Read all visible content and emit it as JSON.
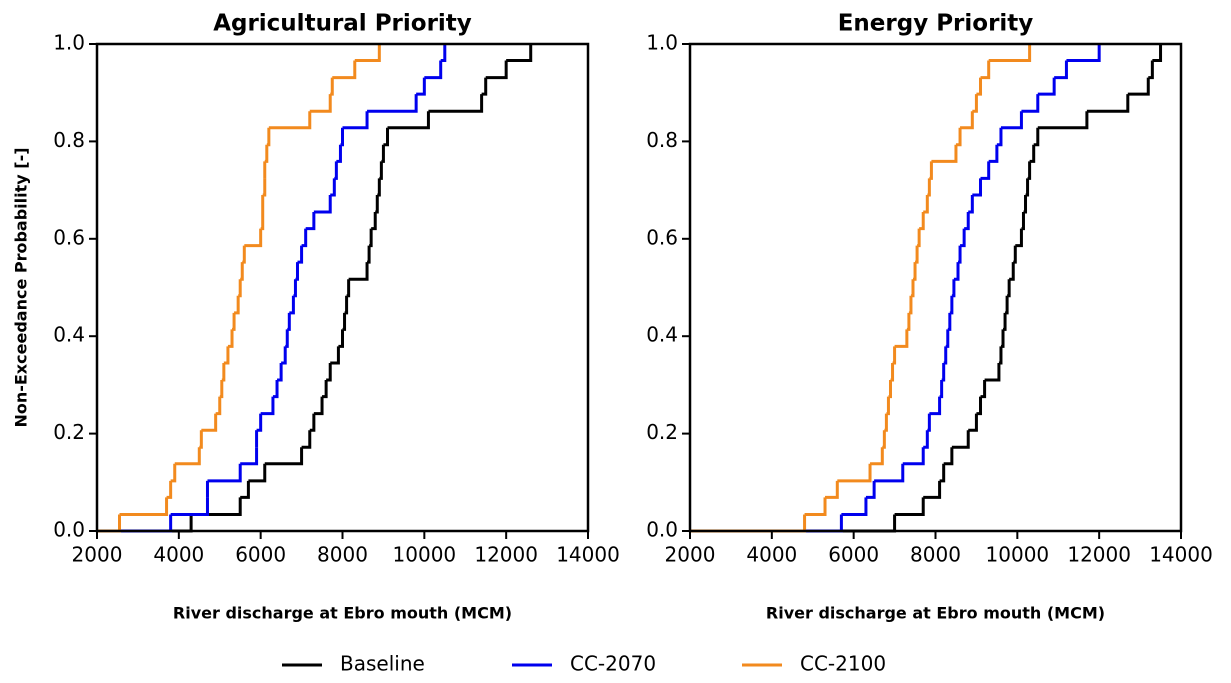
{
  "chart_data": [
    {
      "type": "step",
      "title": "Agricultural Priority",
      "xlabel": "River discharge at Ebro mouth (MCM)",
      "ylabel": "Non-Exceedance Probability [-]",
      "xlim": [
        2000,
        14000
      ],
      "ylim": [
        0,
        1
      ],
      "xticks": [
        2000,
        4000,
        6000,
        8000,
        10000,
        12000,
        14000
      ],
      "yticks": [
        {
          "value": 0,
          "label": "0.0"
        },
        {
          "value": 0.2,
          "label": "0.2"
        },
        {
          "value": 0.4,
          "label": "0.4"
        },
        {
          "value": 0.6,
          "label": "0.6"
        },
        {
          "value": 0.8,
          "label": "0.8"
        },
        {
          "value": 1,
          "label": "1.0"
        }
      ],
      "legend": "bottom",
      "series": [
        {
          "name": "Baseline",
          "color": "#000000",
          "x": [
            4300,
            5500,
            5700,
            6100,
            7000,
            7200,
            7300,
            7500,
            7600,
            7700,
            7900,
            8000,
            8050,
            8100,
            8150,
            8600,
            8650,
            8700,
            8800,
            8850,
            8900,
            8950,
            9000,
            9100,
            10100,
            11400,
            11500,
            12000,
            12600
          ],
          "values": [
            0.034,
            0.069,
            0.103,
            0.138,
            0.172,
            0.207,
            0.241,
            0.276,
            0.31,
            0.345,
            0.379,
            0.414,
            0.448,
            0.483,
            0.517,
            0.552,
            0.586,
            0.621,
            0.655,
            0.69,
            0.724,
            0.759,
            0.793,
            0.828,
            0.862,
            0.897,
            0.931,
            0.966,
            1.0
          ]
        },
        {
          "name": "CC-2070",
          "color": "#0000ee",
          "x": [
            3800,
            4700,
            4700,
            5500,
            5900,
            5900,
            6000,
            6300,
            6400,
            6500,
            6600,
            6650,
            6700,
            6800,
            6850,
            6900,
            7000,
            7100,
            7300,
            7700,
            7800,
            7850,
            7950,
            8000,
            8600,
            9800,
            10000,
            10400,
            10500
          ],
          "values": [
            0.034,
            0.069,
            0.103,
            0.138,
            0.172,
            0.207,
            0.241,
            0.276,
            0.31,
            0.345,
            0.379,
            0.414,
            0.448,
            0.483,
            0.517,
            0.552,
            0.586,
            0.621,
            0.655,
            0.69,
            0.724,
            0.759,
            0.793,
            0.828,
            0.862,
            0.897,
            0.931,
            0.966,
            1.0
          ]
        },
        {
          "name": "CC-2100",
          "color": "#f28a1e",
          "x": [
            2550,
            3700,
            3800,
            3900,
            4500,
            4550,
            4900,
            5000,
            5050,
            5100,
            5200,
            5300,
            5350,
            5450,
            5500,
            5550,
            5600,
            6000,
            6050,
            6050,
            6100,
            6100,
            6150,
            6200,
            7200,
            7700,
            7750,
            8300,
            8900
          ],
          "values": [
            0.034,
            0.069,
            0.103,
            0.138,
            0.172,
            0.207,
            0.241,
            0.276,
            0.31,
            0.345,
            0.379,
            0.414,
            0.448,
            0.483,
            0.517,
            0.552,
            0.586,
            0.621,
            0.655,
            0.69,
            0.724,
            0.759,
            0.793,
            0.828,
            0.862,
            0.897,
            0.931,
            0.966,
            1.0
          ]
        }
      ]
    },
    {
      "type": "step",
      "title": "Energy Priority",
      "xlabel": "River discharge at Ebro mouth (MCM)",
      "xlim": [
        2000,
        14000
      ],
      "ylim": [
        0,
        1
      ],
      "xticks": [
        2000,
        4000,
        6000,
        8000,
        10000,
        12000,
        14000
      ],
      "yticks": [
        {
          "value": 0,
          "label": "0.0"
        },
        {
          "value": 0.2,
          "label": "0.2"
        },
        {
          "value": 0.4,
          "label": "0.4"
        },
        {
          "value": 0.6,
          "label": "0.6"
        },
        {
          "value": 0.8,
          "label": "0.8"
        },
        {
          "value": 1,
          "label": "1.0"
        }
      ],
      "series": [
        {
          "name": "Baseline",
          "color": "#000000",
          "x": [
            7000,
            7700,
            8100,
            8200,
            8400,
            8800,
            9000,
            9100,
            9200,
            9550,
            9600,
            9650,
            9700,
            9750,
            9800,
            9900,
            9950,
            10100,
            10150,
            10200,
            10250,
            10300,
            10400,
            10500,
            11700,
            12700,
            13200,
            13300,
            13500
          ],
          "values": [
            0.034,
            0.069,
            0.103,
            0.138,
            0.172,
            0.207,
            0.241,
            0.276,
            0.31,
            0.345,
            0.379,
            0.414,
            0.448,
            0.483,
            0.517,
            0.552,
            0.586,
            0.621,
            0.655,
            0.69,
            0.724,
            0.759,
            0.793,
            0.828,
            0.862,
            0.897,
            0.931,
            0.966,
            1.0
          ]
        },
        {
          "name": "CC-2070",
          "color": "#0000ee",
          "x": [
            5700,
            6300,
            6500,
            7200,
            7700,
            7800,
            7850,
            8100,
            8150,
            8200,
            8250,
            8300,
            8350,
            8400,
            8450,
            8550,
            8600,
            8700,
            8800,
            8900,
            9100,
            9300,
            9500,
            9600,
            10100,
            10500,
            10900,
            11200,
            12000
          ],
          "values": [
            0.034,
            0.069,
            0.103,
            0.138,
            0.172,
            0.207,
            0.241,
            0.276,
            0.31,
            0.345,
            0.379,
            0.414,
            0.448,
            0.483,
            0.517,
            0.552,
            0.586,
            0.621,
            0.655,
            0.69,
            0.724,
            0.759,
            0.793,
            0.828,
            0.862,
            0.897,
            0.931,
            0.966,
            1.0
          ]
        },
        {
          "name": "CC-2100",
          "color": "#f28a1e",
          "x": [
            4800,
            5300,
            5600,
            6400,
            6700,
            6750,
            6800,
            6850,
            6900,
            6950,
            7000,
            7300,
            7350,
            7400,
            7450,
            7500,
            7550,
            7600,
            7700,
            7800,
            7850,
            7900,
            8500,
            8600,
            8900,
            9000,
            9100,
            9300,
            10300
          ],
          "values": [
            0.034,
            0.069,
            0.103,
            0.138,
            0.172,
            0.207,
            0.241,
            0.276,
            0.31,
            0.345,
            0.379,
            0.414,
            0.448,
            0.483,
            0.517,
            0.552,
            0.586,
            0.621,
            0.655,
            0.69,
            0.724,
            0.759,
            0.793,
            0.828,
            0.862,
            0.897,
            0.931,
            0.966,
            1.0
          ]
        }
      ]
    }
  ]
}
